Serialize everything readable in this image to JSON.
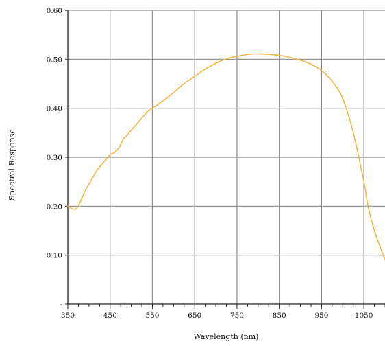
{
  "chart_data": {
    "type": "line",
    "title": "",
    "xlabel": "Wavelength (nm)",
    "ylabel": "Spectral Response",
    "xlim": [
      350,
      1100
    ],
    "ylim": [
      0,
      0.6
    ],
    "x_ticks": [
      350,
      450,
      550,
      650,
      750,
      850,
      950,
      1050
    ],
    "x_tick_labels": [
      "350",
      "450",
      "550",
      "650",
      "750",
      "850",
      "950",
      "1050"
    ],
    "y_ticks": [
      0,
      0.1,
      0.2,
      0.3,
      0.4,
      0.5,
      0.6
    ],
    "y_tick_labels": [
      "-",
      "0.10",
      "0.20",
      "0.30",
      "0.40",
      "0.50",
      "0.60"
    ],
    "grid": true,
    "legend": "none",
    "line_color": "#F5B445",
    "grid_color": "#8a8a8a",
    "series": [
      {
        "x": [
          350,
          360,
          370,
          380,
          390,
          400,
          410,
          420,
          430,
          440,
          450,
          460,
          470,
          480,
          490,
          500,
          510,
          520,
          530,
          540,
          550,
          575,
          600,
          625,
          650,
          675,
          700,
          725,
          750,
          775,
          800,
          825,
          850,
          875,
          900,
          925,
          950,
          975,
          1000,
          1025,
          1050,
          1060,
          1075,
          1100
        ],
        "y": [
          0.2,
          0.195,
          0.195,
          0.21,
          0.23,
          0.245,
          0.26,
          0.275,
          0.285,
          0.295,
          0.305,
          0.31,
          0.318,
          0.335,
          0.345,
          0.355,
          0.365,
          0.375,
          0.385,
          0.395,
          0.4,
          0.415,
          0.432,
          0.45,
          0.465,
          0.48,
          0.492,
          0.501,
          0.506,
          0.51,
          0.511,
          0.51,
          0.508,
          0.504,
          0.498,
          0.49,
          0.477,
          0.455,
          0.42,
          0.35,
          0.25,
          0.2,
          0.15,
          0.09
        ]
      }
    ]
  }
}
